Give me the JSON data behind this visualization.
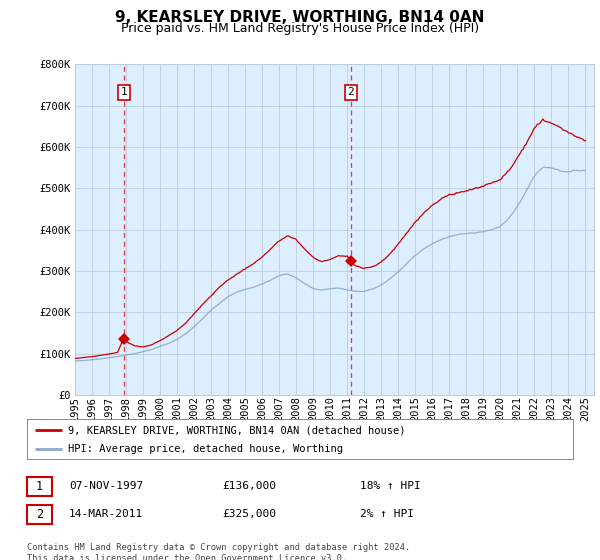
{
  "title": "9, KEARSLEY DRIVE, WORTHING, BN14 0AN",
  "subtitle": "Price paid vs. HM Land Registry's House Price Index (HPI)",
  "ylabel_ticks": [
    "£0",
    "£100K",
    "£200K",
    "£300K",
    "£400K",
    "£500K",
    "£600K",
    "£700K",
    "£800K"
  ],
  "ytick_vals": [
    0,
    100000,
    200000,
    300000,
    400000,
    500000,
    600000,
    700000,
    800000
  ],
  "ylim": [
    0,
    800000
  ],
  "xlim_start": 1995.0,
  "xlim_end": 2025.5,
  "sale1_x": 1997.86,
  "sale1_y": 136000,
  "sale1_label": "1",
  "sale1_date": "07-NOV-1997",
  "sale1_price": "£136,000",
  "sale1_hpi": "18% ↑ HPI",
  "sale2_x": 2011.2,
  "sale2_y": 325000,
  "sale2_label": "2",
  "sale2_date": "14-MAR-2011",
  "sale2_price": "£325,000",
  "sale2_hpi": "2% ↑ HPI",
  "line_color_price": "#cc0000",
  "line_color_hpi": "#88aacc",
  "dashed_line_color": "#cc4444",
  "legend_label_price": "9, KEARSLEY DRIVE, WORTHING, BN14 0AN (detached house)",
  "legend_label_hpi": "HPI: Average price, detached house, Worthing",
  "footer": "Contains HM Land Registry data © Crown copyright and database right 2024.\nThis data is licensed under the Open Government Licence v3.0.",
  "plot_bg_color": "#ddeeff",
  "fig_bg_color": "#ffffff",
  "grid_color": "#bbccdd",
  "title_fontsize": 11,
  "subtitle_fontsize": 9,
  "tick_fontsize": 7.5,
  "hpi_keypoints": [
    [
      1995.0,
      82000
    ],
    [
      1995.5,
      83000
    ],
    [
      1996.0,
      85000
    ],
    [
      1996.5,
      87000
    ],
    [
      1997.0,
      90000
    ],
    [
      1997.5,
      93000
    ],
    [
      1998.0,
      97000
    ],
    [
      1998.5,
      100000
    ],
    [
      1999.0,
      105000
    ],
    [
      1999.5,
      110000
    ],
    [
      2000.0,
      118000
    ],
    [
      2000.5,
      125000
    ],
    [
      2001.0,
      135000
    ],
    [
      2001.5,
      148000
    ],
    [
      2002.0,
      165000
    ],
    [
      2002.5,
      185000
    ],
    [
      2003.0,
      205000
    ],
    [
      2003.5,
      222000
    ],
    [
      2004.0,
      238000
    ],
    [
      2004.5,
      248000
    ],
    [
      2005.0,
      255000
    ],
    [
      2005.5,
      260000
    ],
    [
      2006.0,
      268000
    ],
    [
      2006.5,
      278000
    ],
    [
      2007.0,
      290000
    ],
    [
      2007.5,
      295000
    ],
    [
      2008.0,
      285000
    ],
    [
      2008.5,
      270000
    ],
    [
      2009.0,
      258000
    ],
    [
      2009.5,
      255000
    ],
    [
      2010.0,
      258000
    ],
    [
      2010.5,
      260000
    ],
    [
      2011.0,
      255000
    ],
    [
      2011.5,
      252000
    ],
    [
      2012.0,
      252000
    ],
    [
      2012.5,
      258000
    ],
    [
      2013.0,
      268000
    ],
    [
      2013.5,
      282000
    ],
    [
      2014.0,
      300000
    ],
    [
      2014.5,
      320000
    ],
    [
      2015.0,
      340000
    ],
    [
      2015.5,
      355000
    ],
    [
      2016.0,
      368000
    ],
    [
      2016.5,
      378000
    ],
    [
      2017.0,
      385000
    ],
    [
      2017.5,
      390000
    ],
    [
      2018.0,
      392000
    ],
    [
      2018.5,
      395000
    ],
    [
      2019.0,
      398000
    ],
    [
      2019.5,
      403000
    ],
    [
      2020.0,
      410000
    ],
    [
      2020.5,
      430000
    ],
    [
      2021.0,
      460000
    ],
    [
      2021.5,
      495000
    ],
    [
      2022.0,
      535000
    ],
    [
      2022.5,
      555000
    ],
    [
      2023.0,
      555000
    ],
    [
      2023.5,
      548000
    ],
    [
      2024.0,
      545000
    ],
    [
      2024.5,
      548000
    ],
    [
      2025.0,
      550000
    ]
  ],
  "price_keypoints": [
    [
      1995.0,
      88000
    ],
    [
      1995.5,
      90000
    ],
    [
      1996.0,
      92000
    ],
    [
      1996.5,
      95000
    ],
    [
      1997.0,
      98000
    ],
    [
      1997.5,
      102000
    ],
    [
      1997.86,
      136000
    ],
    [
      1998.0,
      128000
    ],
    [
      1998.5,
      118000
    ],
    [
      1999.0,
      115000
    ],
    [
      1999.5,
      120000
    ],
    [
      2000.0,
      130000
    ],
    [
      2000.5,
      142000
    ],
    [
      2001.0,
      155000
    ],
    [
      2001.5,
      172000
    ],
    [
      2002.0,
      195000
    ],
    [
      2002.5,
      218000
    ],
    [
      2003.0,
      238000
    ],
    [
      2003.5,
      260000
    ],
    [
      2004.0,
      278000
    ],
    [
      2004.5,
      292000
    ],
    [
      2005.0,
      305000
    ],
    [
      2005.5,
      318000
    ],
    [
      2006.0,
      335000
    ],
    [
      2006.5,
      355000
    ],
    [
      2007.0,
      375000
    ],
    [
      2007.5,
      388000
    ],
    [
      2008.0,
      378000
    ],
    [
      2008.5,
      355000
    ],
    [
      2009.0,
      335000
    ],
    [
      2009.5,
      325000
    ],
    [
      2010.0,
      330000
    ],
    [
      2010.5,
      340000
    ],
    [
      2011.0,
      338000
    ],
    [
      2011.2,
      325000
    ],
    [
      2011.5,
      315000
    ],
    [
      2012.0,
      308000
    ],
    [
      2012.5,
      312000
    ],
    [
      2013.0,
      325000
    ],
    [
      2013.5,
      345000
    ],
    [
      2014.0,
      370000
    ],
    [
      2014.5,
      398000
    ],
    [
      2015.0,
      425000
    ],
    [
      2015.5,
      448000
    ],
    [
      2016.0,
      468000
    ],
    [
      2016.5,
      482000
    ],
    [
      2017.0,
      492000
    ],
    [
      2017.5,
      498000
    ],
    [
      2018.0,
      502000
    ],
    [
      2018.5,
      508000
    ],
    [
      2019.0,
      512000
    ],
    [
      2019.5,
      520000
    ],
    [
      2020.0,
      528000
    ],
    [
      2020.5,
      548000
    ],
    [
      2021.0,
      578000
    ],
    [
      2021.5,
      612000
    ],
    [
      2022.0,
      648000
    ],
    [
      2022.5,
      668000
    ],
    [
      2023.0,
      662000
    ],
    [
      2023.5,
      650000
    ],
    [
      2024.0,
      638000
    ],
    [
      2024.5,
      628000
    ],
    [
      2025.0,
      618000
    ]
  ]
}
